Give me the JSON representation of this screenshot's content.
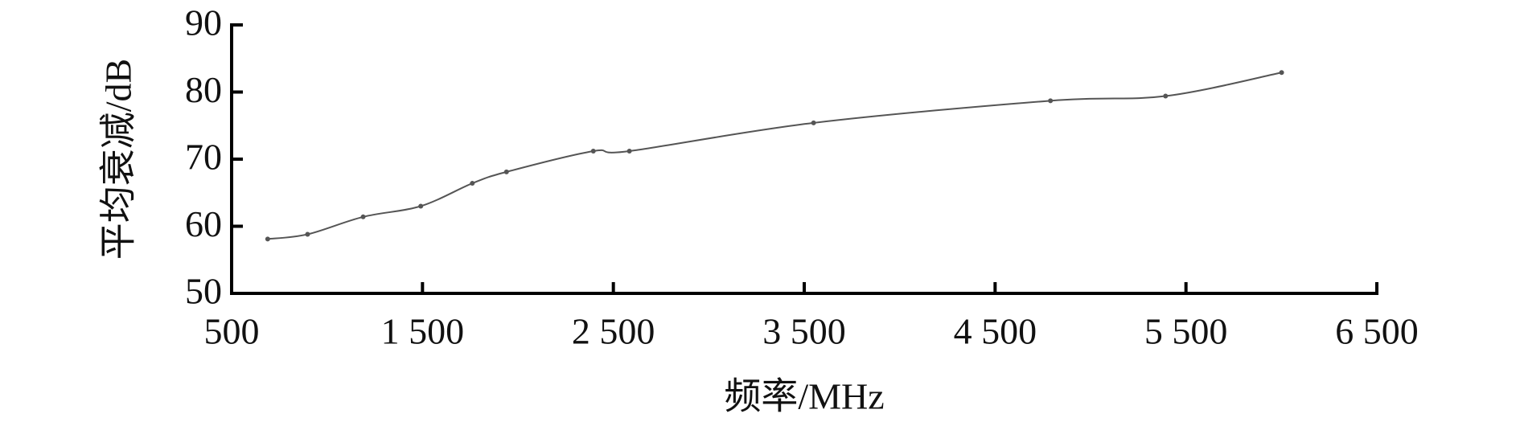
{
  "chart_data": {
    "type": "line",
    "xlabel": "频率/MHz",
    "ylabel": "平均衰减/dB",
    "x": [
      689,
      898,
      1189,
      1491,
      1761,
      1940,
      2395,
      2584,
      3549,
      4790,
      5393,
      6001
    ],
    "series": [
      {
        "color": "#555555",
        "values": [
          58.1,
          58.8,
          61.4,
          63.0,
          66.4,
          68.1,
          71.2,
          71.2,
          75.4,
          78.7,
          79.4,
          82.9
        ]
      }
    ],
    "xlim": [
      500,
      6500
    ],
    "xticks": [
      500,
      {
        "value": 1500,
        "label": "1 500"
      },
      {
        "value": 2500,
        "label": "2 500"
      },
      {
        "value": 3500,
        "label": "3 500"
      },
      {
        "value": 4500,
        "label": "4 500"
      },
      {
        "value": 5500,
        "label": "5 500"
      },
      {
        "value": 6500,
        "label": "6 500"
      }
    ],
    "ylim": [
      50,
      90
    ],
    "yticks": [
      50,
      60,
      70,
      80,
      90
    ]
  }
}
